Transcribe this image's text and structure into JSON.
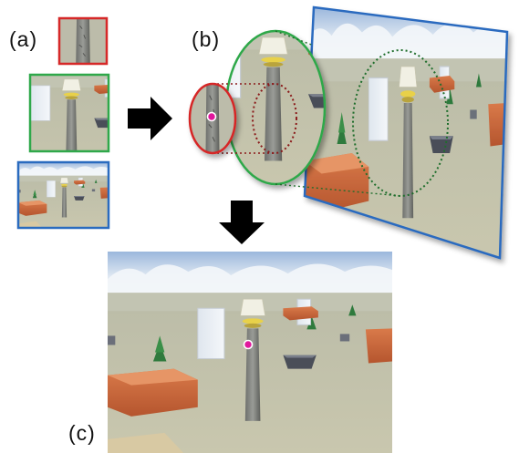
{
  "labels": {
    "a": "(a)",
    "b": "(b)",
    "c": "(c)"
  },
  "colors": {
    "red": "#d62828",
    "green": "#2fa84a",
    "blue": "#2a6bbf",
    "dot_outline": "#ffffff",
    "dot_fill": "#e0199c",
    "arrow": "#000000",
    "dotted_red": "#8b1a1a",
    "dotted_green": "#1f6e2c"
  },
  "icons": [
    "right-arrow-icon",
    "down-arrow-icon"
  ]
}
